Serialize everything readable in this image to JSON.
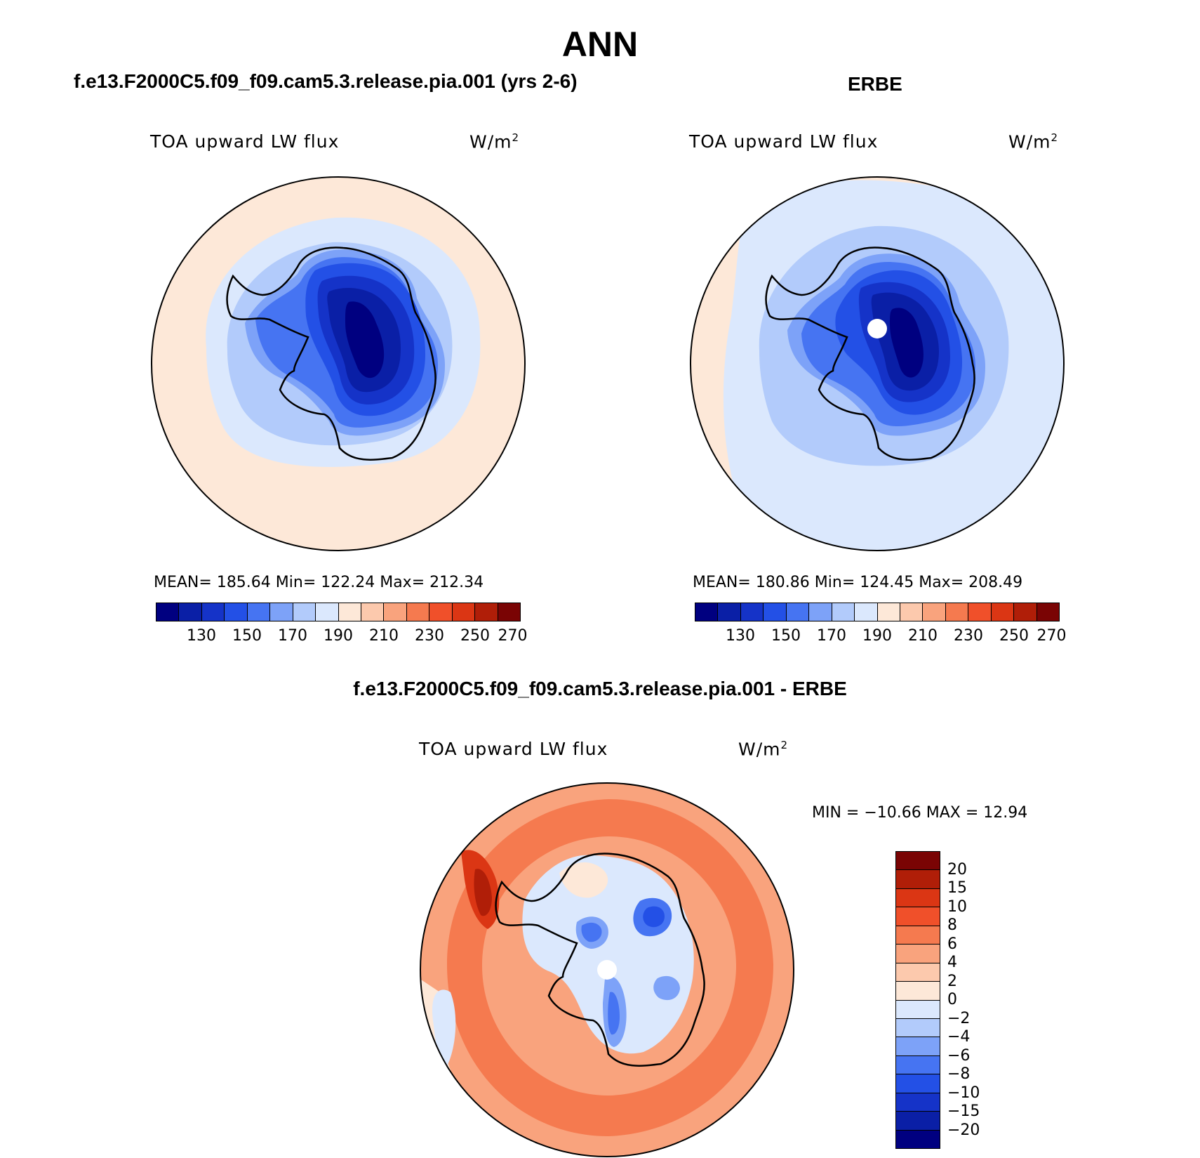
{
  "figure_title": "ANN",
  "panels": [
    {
      "id": "model",
      "subtitle": "f.e13.F2000C5.f09_f09.cam5.3.release.pia.001 (yrs 2-6)",
      "variable": "TOA upward LW flux",
      "units_base": "W/m",
      "units_exp": "2",
      "stats": "MEAN= 185.64   Min= 122.24   Max= 212.34",
      "colorbar_ticks": [
        "130",
        "150",
        "170",
        "190",
        "210",
        "230",
        "250",
        "270"
      ]
    },
    {
      "id": "obs",
      "subtitle": "ERBE",
      "variable": "TOA upward LW flux",
      "units_base": "W/m",
      "units_exp": "2",
      "stats": "MEAN= 180.86   Min= 124.45   Max= 208.49",
      "colorbar_ticks": [
        "130",
        "150",
        "170",
        "190",
        "210",
        "230",
        "250",
        "270"
      ]
    }
  ],
  "diff_panel": {
    "subtitle": "f.e13.F2000C5.f09_f09.cam5.3.release.pia.001 - ERBE",
    "variable": "TOA upward LW flux",
    "units_base": "W/m",
    "units_exp": "2",
    "minmax": "MIN = −10.66 MAX =   12.94",
    "colorbar_ticks": [
      "20",
      "15",
      "10",
      "8",
      "6",
      "4",
      "2",
      "0",
      "−2",
      "−4",
      "−6",
      "−8",
      "−10",
      "−15",
      "−20"
    ]
  },
  "colors": {
    "abs_scale": [
      "#000080",
      "#0a1fa6",
      "#1533c8",
      "#2350e6",
      "#4674f2",
      "#7da2f8",
      "#b2cbfb",
      "#dbe8fd",
      "#fde8d8",
      "#fcc9ad",
      "#f9a37d",
      "#f57a4f",
      "#f0502a",
      "#db3614",
      "#b01e08",
      "#7a0404"
    ],
    "diff_scale": [
      "#7a0404",
      "#b01e08",
      "#db3614",
      "#f0502a",
      "#f57a4f",
      "#f9a37d",
      "#fcc9ad",
      "#fde8d8",
      "#dbe8fd",
      "#b2cbfb",
      "#7da2f8",
      "#4674f2",
      "#2350e6",
      "#1533c8",
      "#0a1fa6",
      "#000080"
    ],
    "coastline": "#000000"
  },
  "chart_data": [
    {
      "type": "heatmap",
      "projection": "south-polar-stereographic",
      "title": "TOA upward LW flux",
      "units": "W/m2",
      "source": "f.e13.F2000C5.f09_f09.cam5.3.release.pia.001 (yrs 2-6)",
      "mean": 185.64,
      "min": 122.24,
      "max": 212.34,
      "contour_levels": [
        130,
        140,
        150,
        160,
        170,
        180,
        190,
        200,
        210,
        220,
        230,
        240,
        250,
        260,
        270
      ]
    },
    {
      "type": "heatmap",
      "projection": "south-polar-stereographic",
      "title": "TOA upward LW flux",
      "units": "W/m2",
      "source": "ERBE",
      "mean": 180.86,
      "min": 124.45,
      "max": 208.49,
      "contour_levels": [
        130,
        140,
        150,
        160,
        170,
        180,
        190,
        200,
        210,
        220,
        230,
        240,
        250,
        260,
        270
      ]
    },
    {
      "type": "heatmap",
      "projection": "south-polar-stereographic",
      "title": "TOA upward LW flux",
      "units": "W/m2",
      "source": "f.e13.F2000C5.f09_f09.cam5.3.release.pia.001 - ERBE",
      "min": -10.66,
      "max": 12.94,
      "contour_levels": [
        -20,
        -15,
        -10,
        -8,
        -6,
        -4,
        -2,
        0,
        2,
        4,
        6,
        8,
        10,
        15,
        20
      ]
    }
  ]
}
